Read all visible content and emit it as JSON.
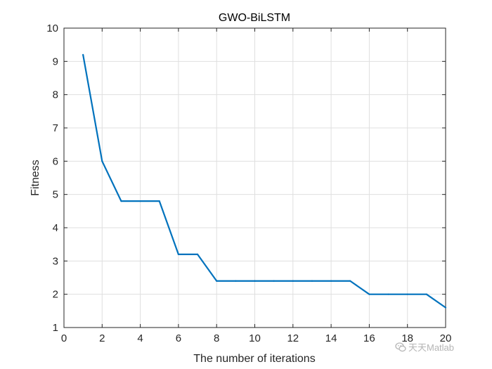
{
  "chart_data": {
    "type": "line",
    "title": "GWO-BiLSTM",
    "xlabel": "The number of iterations",
    "ylabel": "Fitness",
    "xlim": [
      0,
      20
    ],
    "ylim": [
      1,
      10
    ],
    "xticks": [
      0,
      2,
      4,
      6,
      8,
      10,
      12,
      14,
      16,
      18,
      20
    ],
    "yticks": [
      1,
      2,
      3,
      4,
      5,
      6,
      7,
      8,
      9,
      10
    ],
    "grid": true,
    "series": [
      {
        "x": [
          1,
          2,
          3,
          4,
          5,
          6,
          7,
          8,
          9,
          10,
          11,
          12,
          13,
          14,
          15,
          16,
          17,
          18,
          19,
          20
        ],
        "y": [
          9.2,
          6.0,
          4.8,
          4.8,
          4.8,
          3.2,
          3.2,
          2.4,
          2.4,
          2.4,
          2.4,
          2.4,
          2.4,
          2.4,
          2.4,
          2.0,
          2.0,
          2.0,
          2.0,
          1.6
        ],
        "color": "#0072BD"
      }
    ]
  },
  "watermark": {
    "text": "天天Matlab",
    "icon": "wechat-icon"
  }
}
